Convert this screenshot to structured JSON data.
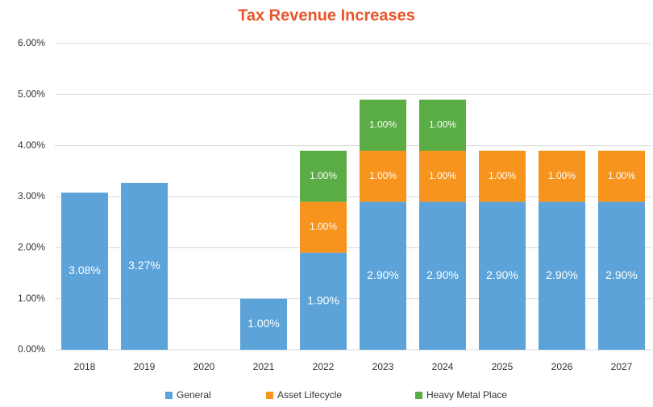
{
  "chart_data": {
    "type": "stacked_bar",
    "title": "Tax Revenue Increases",
    "categories": [
      "2018",
      "2019",
      "2020",
      "2021",
      "2022",
      "2023",
      "2024",
      "2025",
      "2026",
      "2027"
    ],
    "series": [
      {
        "name": "General",
        "color": "#5ba3d9",
        "values": [
          3.08,
          3.27,
          null,
          1.0,
          1.9,
          2.9,
          2.9,
          2.9,
          2.9,
          2.9
        ],
        "value_labels": [
          "3.08%",
          "3.27%",
          null,
          "1.00%",
          "1.90%",
          "2.90%",
          "2.90%",
          "2.90%",
          "2.90%",
          "2.90%"
        ]
      },
      {
        "name": "Asset Lifecycle",
        "color": "#f7941d",
        "values": [
          null,
          null,
          null,
          null,
          1.0,
          1.0,
          1.0,
          1.0,
          1.0,
          1.0
        ],
        "value_labels": [
          null,
          null,
          null,
          null,
          "1.00%",
          "1.00%",
          "1.00%",
          "1.00%",
          "1.00%",
          "1.00%"
        ]
      },
      {
        "name": "Heavy Metal Place",
        "color": "#5aac44",
        "values": [
          null,
          null,
          null,
          null,
          1.0,
          1.0,
          1.0,
          null,
          null,
          null
        ],
        "value_labels": [
          null,
          null,
          null,
          null,
          "1.00%",
          "1.00%",
          "1.00%",
          null,
          null,
          null
        ]
      }
    ],
    "ylim": [
      0,
      6
    ],
    "yticks": [
      {
        "value": 0,
        "label": "0.00%"
      },
      {
        "value": 1,
        "label": "1.00%"
      },
      {
        "value": 2,
        "label": "2.00%"
      },
      {
        "value": 3,
        "label": "3.00%"
      },
      {
        "value": 4,
        "label": "4.00%"
      },
      {
        "value": 5,
        "label": "5.00%"
      },
      {
        "value": 6,
        "label": "6.00%"
      }
    ],
    "grid": true,
    "legend": "bottom"
  }
}
